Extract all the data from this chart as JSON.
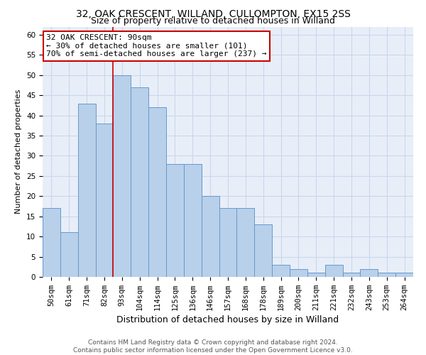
{
  "title1": "32, OAK CRESCENT, WILLAND, CULLOMPTON, EX15 2SS",
  "title2": "Size of property relative to detached houses in Willand",
  "xlabel": "Distribution of detached houses by size in Willand",
  "ylabel": "Number of detached properties",
  "categories": [
    "50sqm",
    "61sqm",
    "71sqm",
    "82sqm",
    "93sqm",
    "104sqm",
    "114sqm",
    "125sqm",
    "136sqm",
    "146sqm",
    "157sqm",
    "168sqm",
    "178sqm",
    "189sqm",
    "200sqm",
    "211sqm",
    "221sqm",
    "232sqm",
    "243sqm",
    "253sqm",
    "264sqm"
  ],
  "values": [
    17,
    11,
    43,
    38,
    50,
    47,
    42,
    28,
    28,
    20,
    17,
    17,
    13,
    3,
    2,
    1,
    3,
    1,
    2,
    1,
    1
  ],
  "bar_color": "#b8d0ea",
  "bar_edge_color": "#6699cc",
  "annotation_text1": "32 OAK CRESCENT: 90sqm",
  "annotation_text2": "← 30% of detached houses are smaller (101)",
  "annotation_text3": "70% of semi-detached houses are larger (237) →",
  "annotation_box_color": "#ffffff",
  "annotation_box_edge": "#cc0000",
  "vline_color": "#cc0000",
  "grid_color": "#c8d8ec",
  "background_color": "#e8eef8",
  "ylim": [
    0,
    62
  ],
  "yticks": [
    0,
    5,
    10,
    15,
    20,
    25,
    30,
    35,
    40,
    45,
    50,
    55,
    60
  ],
  "footer1": "Contains HM Land Registry data © Crown copyright and database right 2024.",
  "footer2": "Contains public sector information licensed under the Open Government Licence v3.0.",
  "title1_fontsize": 10,
  "title2_fontsize": 9,
  "xlabel_fontsize": 9,
  "ylabel_fontsize": 8,
  "tick_fontsize": 7.5,
  "footer_fontsize": 6.5,
  "annot_fontsize": 8
}
